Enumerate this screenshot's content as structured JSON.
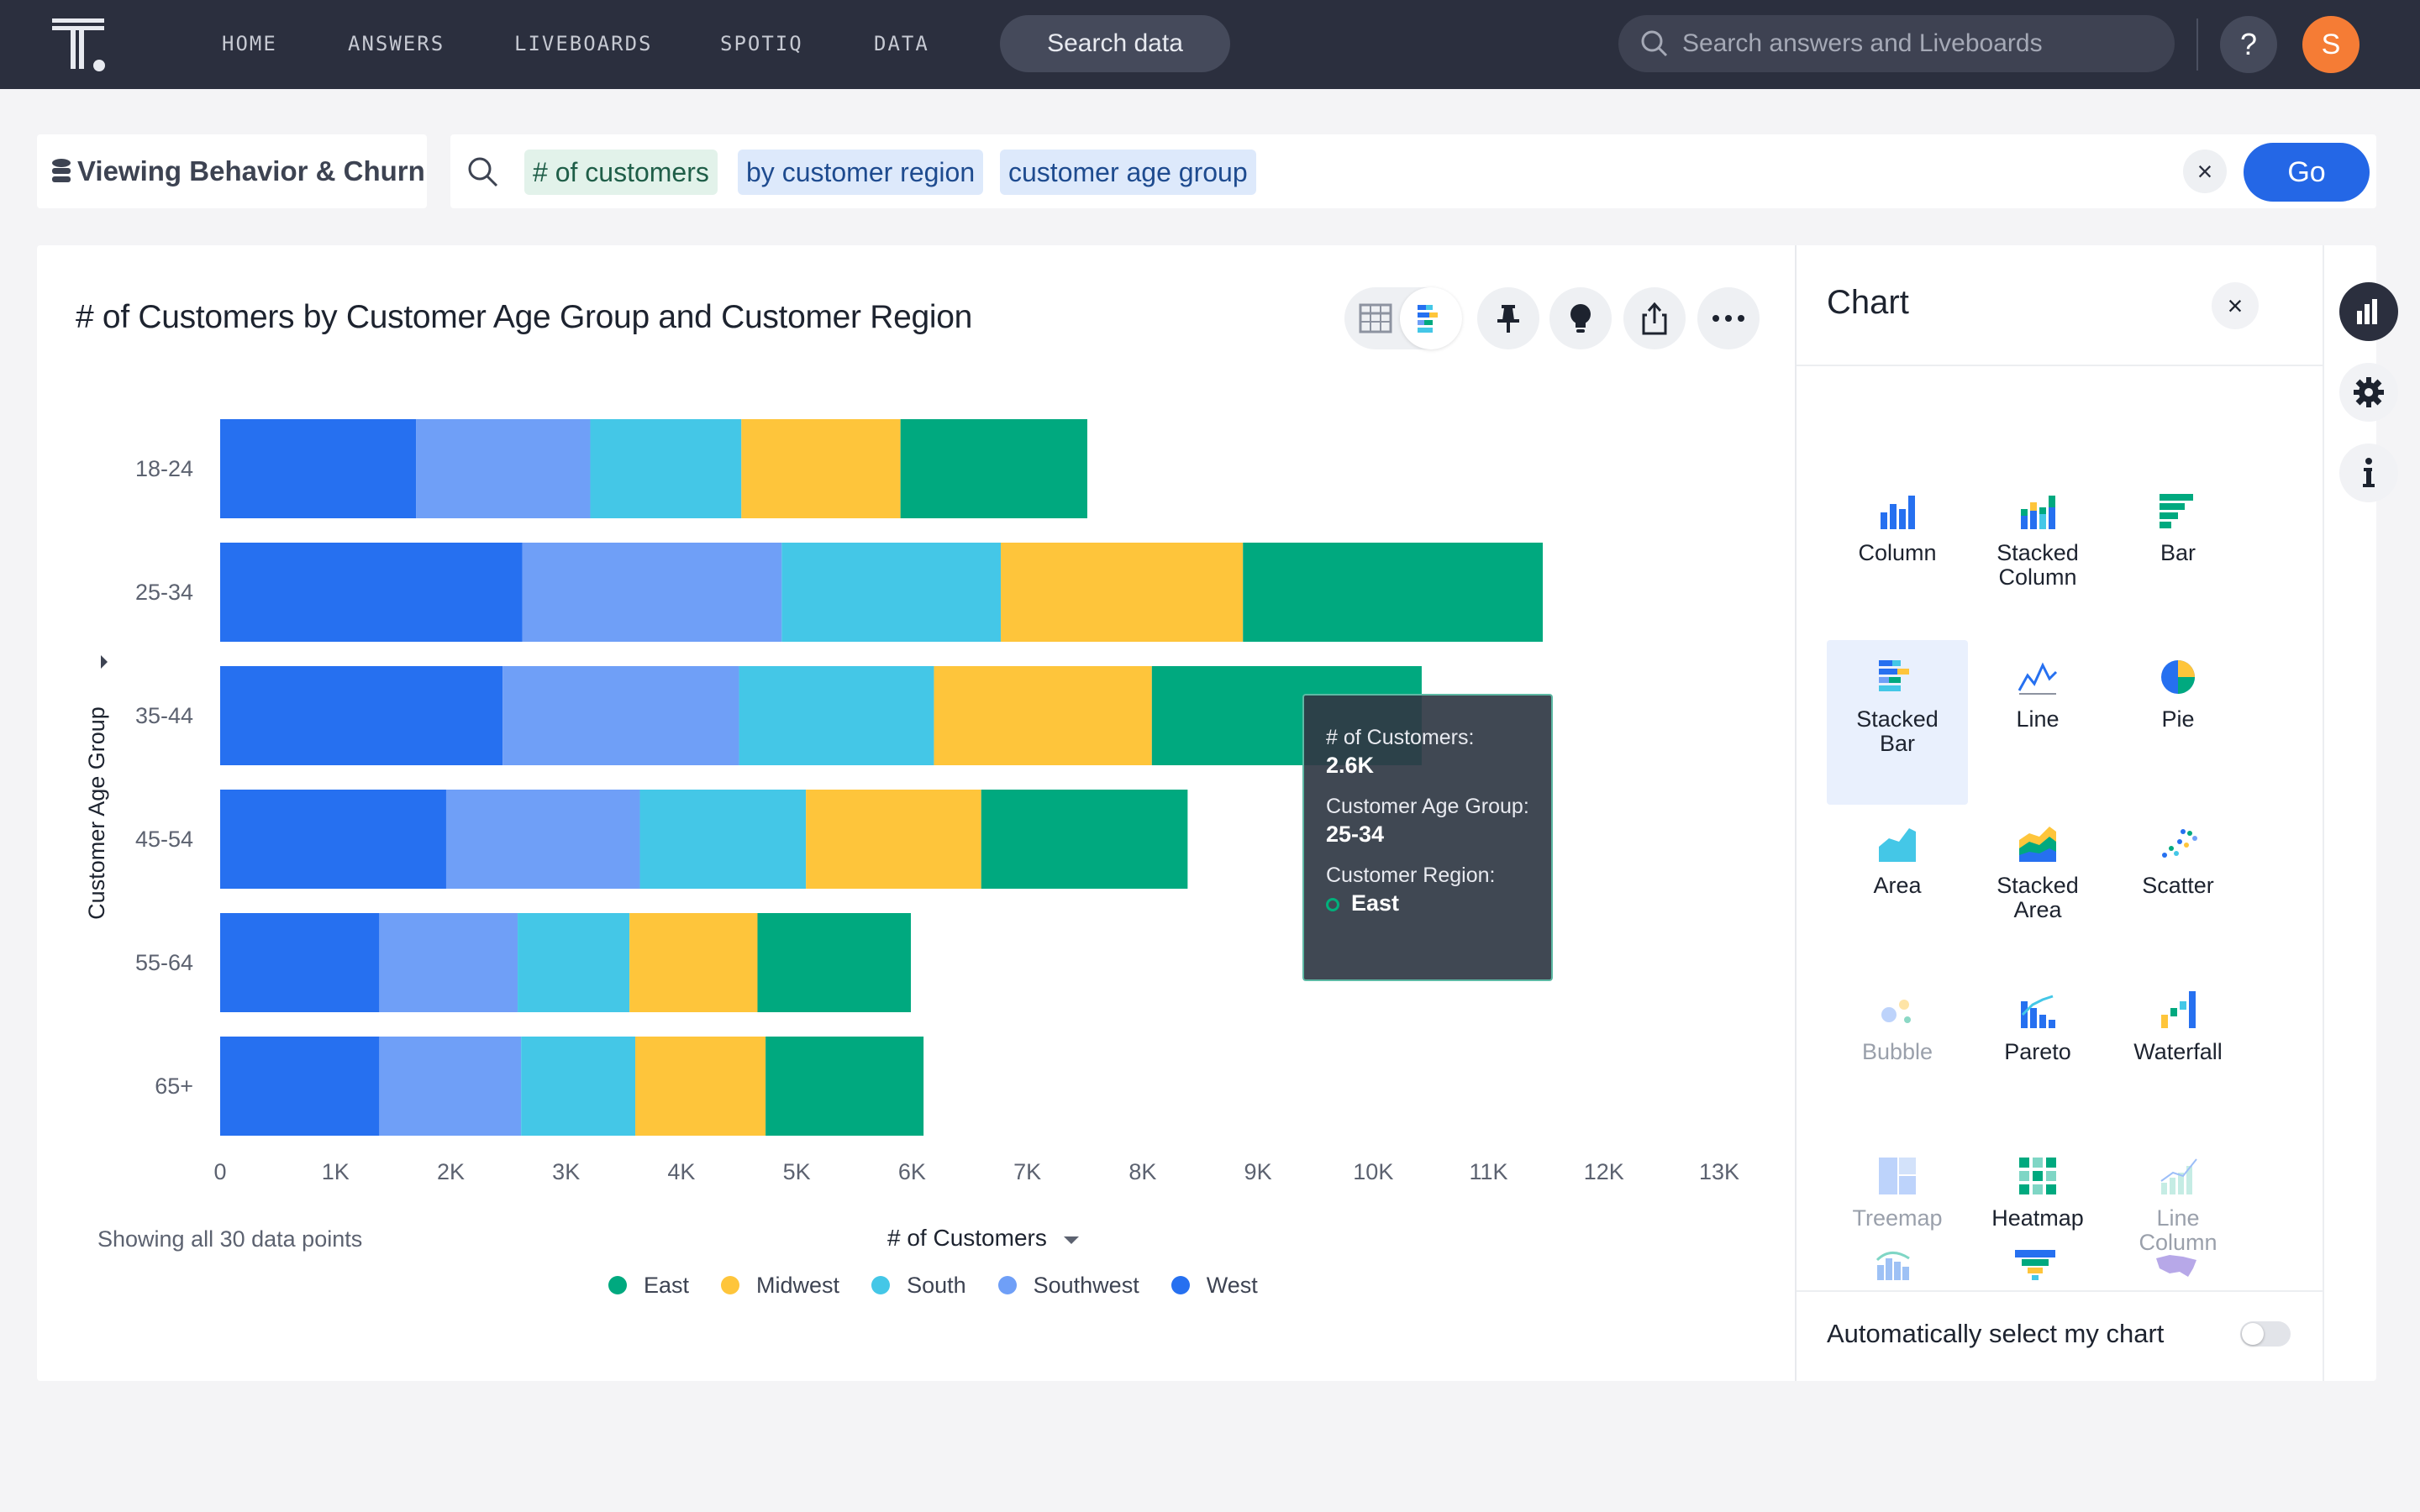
{
  "nav": {
    "items": [
      "HOME",
      "ANSWERS",
      "LIVEBOARDS",
      "SPOTIQ",
      "DATA"
    ],
    "search_data_label": "Search data",
    "global_search_placeholder": "Search answers and Liveboards",
    "help_label": "?",
    "avatar_initial": "S"
  },
  "search": {
    "source_label": "Viewing Behavior & Churn",
    "tokens": [
      "# of customers",
      "by customer region",
      "customer age group"
    ],
    "clear_label": "×",
    "go_label": "Go"
  },
  "answer": {
    "title": "# of Customers by Customer Age Group and Customer Region",
    "footer_note": "Showing all 30 data points",
    "x_axis_title": "# of Customers"
  },
  "tooltip": {
    "measure_key": "# of Customers:",
    "measure_value": "2.6K",
    "age_key": "Customer Age Group:",
    "age_value": "25-34",
    "region_key": "Customer Region:",
    "region_value": "East"
  },
  "chart_panel": {
    "title": "Chart",
    "close_label": "×",
    "types": [
      {
        "label": "Column",
        "icon": "column-chart-icon",
        "state": "normal"
      },
      {
        "label": "Stacked Column",
        "icon": "stacked-column-chart-icon",
        "state": "normal"
      },
      {
        "label": "Bar",
        "icon": "bar-chart-icon",
        "state": "normal"
      },
      {
        "label": "Stacked Bar",
        "icon": "stacked-bar-chart-icon",
        "state": "selected"
      },
      {
        "label": "Line",
        "icon": "line-chart-icon",
        "state": "normal"
      },
      {
        "label": "Pie",
        "icon": "pie-chart-icon",
        "state": "normal"
      },
      {
        "label": "Area",
        "icon": "area-chart-icon",
        "state": "normal"
      },
      {
        "label": "Stacked Area",
        "icon": "stacked-area-chart-icon",
        "state": "normal"
      },
      {
        "label": "Scatter",
        "icon": "scatter-chart-icon",
        "state": "normal"
      },
      {
        "label": "Bubble",
        "icon": "bubble-chart-icon",
        "state": "disabled"
      },
      {
        "label": "Pareto",
        "icon": "pareto-chart-icon",
        "state": "normal"
      },
      {
        "label": "Waterfall",
        "icon": "waterfall-chart-icon",
        "state": "normal"
      },
      {
        "label": "Treemap",
        "icon": "treemap-chart-icon",
        "state": "disabled"
      },
      {
        "label": "Heatmap",
        "icon": "heatmap-chart-icon",
        "state": "normal"
      },
      {
        "label": "Line Column",
        "icon": "line-column-chart-icon",
        "state": "disabled"
      }
    ],
    "auto_select_label": "Automatically select my chart",
    "auto_select_on": false
  },
  "colors": {
    "East": "#00a97f",
    "Midwest": "#fec53b",
    "South": "#44c7e7",
    "Southwest": "#6f9ff7",
    "West": "#2670f0",
    "nav_bg": "#2b2f3e",
    "accent": "#2467e6"
  },
  "chart_data": {
    "type": "bar",
    "orientation": "horizontal",
    "stacked": true,
    "ylabel": "Customer Age Group",
    "xlabel": "# of Customers",
    "categories": [
      "18-24",
      "25-34",
      "35-44",
      "45-54",
      "55-64",
      "65+"
    ],
    "x_ticks": [
      "0",
      "1K",
      "2K",
      "3K",
      "4K",
      "5K",
      "6K",
      "7K",
      "8K",
      "9K",
      "10K",
      "11K",
      "12K",
      "13K"
    ],
    "xlim": [
      0,
      13000
    ],
    "series": [
      {
        "name": "West",
        "values": [
          1700,
          2620,
          2450,
          1960,
          1380,
          1380
        ]
      },
      {
        "name": "Southwest",
        "values": [
          1510,
          2250,
          2050,
          1680,
          1200,
          1230
        ]
      },
      {
        "name": "South",
        "values": [
          1310,
          1900,
          1690,
          1440,
          970,
          990
        ]
      },
      {
        "name": "Midwest",
        "values": [
          1380,
          2100,
          1890,
          1520,
          1110,
          1130
        ]
      },
      {
        "name": "East",
        "values": [
          1620,
          2600,
          2340,
          1790,
          1330,
          1370
        ]
      }
    ],
    "legend": [
      "East",
      "Midwest",
      "South",
      "Southwest",
      "West"
    ],
    "legend_position": "bottom"
  }
}
